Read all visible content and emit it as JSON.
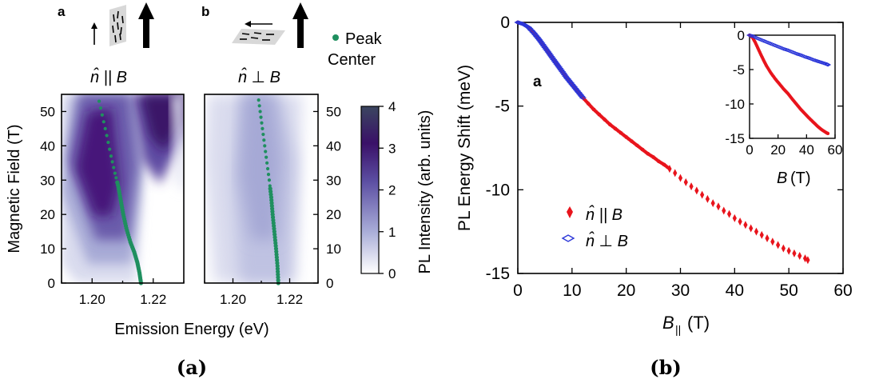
{
  "captions": {
    "left": "(a)",
    "right": "(b)"
  },
  "chart_data": [
    {
      "type": "heatmap",
      "panel_label": "a",
      "orientation_label": "n̂ || B",
      "xlabel": "Emission Energy (eV)",
      "ylabel": "Magnetic Field (T)",
      "x_ticks": [
        "1.20",
        "1.22"
      ],
      "y_ticks": [
        "0",
        "10",
        "20",
        "30",
        "40",
        "50"
      ],
      "xlim": [
        1.19,
        1.23
      ],
      "ylim": [
        0,
        55
      ],
      "legend": {
        "label_line1": "Peak",
        "label_line2": "Center",
        "color": "#1f8f5f"
      },
      "peak_center": {
        "x": [
          1.216,
          1.2155,
          1.2148,
          1.2138,
          1.2125,
          1.2112,
          1.2102,
          1.2094,
          1.2086,
          1.2075,
          1.2062,
          1.2048,
          1.2033,
          1.2018
        ],
        "y": [
          0,
          3,
          6,
          9,
          12,
          16,
          20,
          24,
          28,
          32,
          37,
          43,
          49,
          55
        ]
      }
    },
    {
      "type": "heatmap",
      "panel_label": "b",
      "orientation_label": "n̂ ⊥ B",
      "xlabel": "Emission Energy (eV)",
      "x_ticks": [
        "1.20",
        "1.22"
      ],
      "y_ticks": [
        "0",
        "10",
        "20",
        "30",
        "40",
        "50"
      ],
      "xlim": [
        1.19,
        1.23
      ],
      "ylim": [
        0,
        55
      ],
      "colorbar": {
        "label": "PL Intensity (arb. units)",
        "ticks": [
          "0",
          "1",
          "2",
          "3",
          "4"
        ],
        "range": [
          0,
          4
        ],
        "colors": [
          "#ffffff",
          "#a9add8",
          "#5c4fa3",
          "#3a1068",
          "#3b4660"
        ]
      },
      "peak_center": {
        "x": [
          1.216,
          1.2157,
          1.2152,
          1.2146,
          1.214,
          1.2135,
          1.2128,
          1.212,
          1.2112,
          1.2104,
          1.2096,
          1.2088
        ],
        "y": [
          0,
          5,
          10,
          15,
          20,
          25,
          30,
          35,
          40,
          45,
          50,
          55
        ]
      }
    },
    {
      "type": "scatter",
      "panel_label": "a",
      "xlabel": "B|| (T)",
      "ylabel": "PL Energy Shift (meV)",
      "xlim": [
        0,
        60
      ],
      "ylim": [
        -15,
        0
      ],
      "x_ticks": [
        "0",
        "10",
        "20",
        "30",
        "40",
        "50",
        "60"
      ],
      "y_ticks": [
        "0",
        "-5",
        "-10",
        "-15"
      ],
      "series": [
        {
          "name": "n̂ || B",
          "color": "#e8141c",
          "x": [
            0,
            1,
            2,
            3,
            4,
            5,
            6,
            7,
            8,
            9,
            10,
            11,
            12,
            13,
            14,
            15,
            16,
            17,
            18,
            19,
            20,
            21,
            22,
            23,
            24,
            25,
            26,
            27,
            28,
            29,
            30,
            31,
            32,
            33,
            34,
            35,
            36,
            37,
            38,
            39,
            40,
            41,
            42,
            43,
            44,
            45,
            46,
            47,
            48,
            49,
            50,
            51,
            52,
            53,
            53.5
          ],
          "y": [
            0,
            -0.1,
            -0.3,
            -0.65,
            -1.05,
            -1.5,
            -1.95,
            -2.4,
            -2.85,
            -3.3,
            -3.7,
            -4.1,
            -4.5,
            -4.85,
            -5.2,
            -5.5,
            -5.8,
            -6.1,
            -6.35,
            -6.6,
            -6.85,
            -7.1,
            -7.35,
            -7.6,
            -7.85,
            -8.05,
            -8.3,
            -8.5,
            -8.75,
            -9.0,
            -9.3,
            -9.55,
            -9.8,
            -10.05,
            -10.3,
            -10.55,
            -10.8,
            -11.0,
            -11.25,
            -11.45,
            -11.7,
            -11.9,
            -12.1,
            -12.3,
            -12.5,
            -12.7,
            -12.9,
            -13.1,
            -13.3,
            -13.5,
            -13.65,
            -13.8,
            -13.95,
            -14.1,
            -14.2
          ]
        },
        {
          "name": "n̂ ⊥ B",
          "color": "#2a35d8",
          "x": [
            0,
            1,
            2,
            3,
            4,
            5,
            6,
            7,
            8,
            9,
            10,
            11,
            12
          ],
          "y": [
            0,
            -0.1,
            -0.3,
            -0.65,
            -1.05,
            -1.5,
            -1.95,
            -2.4,
            -2.85,
            -3.3,
            -3.7,
            -4.1,
            -4.5
          ]
        }
      ]
    },
    {
      "type": "scatter",
      "inset": true,
      "xlabel": "B (T)",
      "xlim": [
        0,
        60
      ],
      "ylim": [
        -15,
        0
      ],
      "x_ticks": [
        "0",
        "20",
        "40",
        "60"
      ],
      "y_ticks": [
        "0",
        "-5",
        "-10",
        "-15"
      ],
      "series": [
        {
          "name": "n̂ || B",
          "color": "#e8141c",
          "x": [
            0,
            2,
            4,
            6,
            8,
            10,
            12,
            15,
            18,
            21,
            24,
            27,
            30,
            33,
            36,
            39,
            42,
            45,
            48,
            51,
            54,
            55
          ],
          "y": [
            0,
            -0.3,
            -1.05,
            -1.95,
            -2.85,
            -3.7,
            -4.5,
            -5.5,
            -6.35,
            -7.1,
            -7.85,
            -8.5,
            -9.3,
            -10.05,
            -10.8,
            -11.45,
            -12.1,
            -12.7,
            -13.3,
            -13.8,
            -14.2,
            -14.3
          ]
        },
        {
          "name": "n̂ ⊥ B",
          "color": "#2a35d8",
          "x": [
            0,
            3,
            6,
            9,
            12,
            15,
            18,
            21,
            24,
            27,
            30,
            33,
            36,
            39,
            42,
            45,
            48,
            51,
            54,
            55
          ],
          "y": [
            0,
            -0.2,
            -0.5,
            -0.75,
            -1.0,
            -1.25,
            -1.5,
            -1.75,
            -2.0,
            -2.2,
            -2.45,
            -2.7,
            -2.9,
            -3.15,
            -3.35,
            -3.6,
            -3.8,
            -4.0,
            -4.2,
            -4.3
          ]
        }
      ]
    }
  ]
}
